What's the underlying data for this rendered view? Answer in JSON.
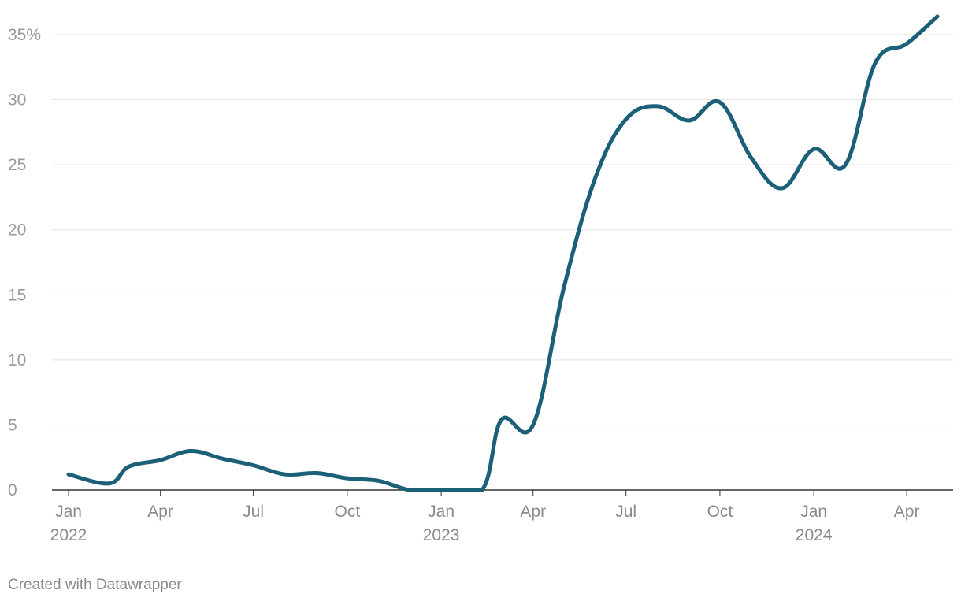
{
  "footer": {
    "credit": "Created with Datawrapper"
  },
  "colors": {
    "line": "#1b5f78",
    "grid": "#e3e3e3",
    "axis": "#333333",
    "tick_text": "#9a9a9a"
  },
  "chart_data": {
    "type": "line",
    "title": "",
    "xlabel": "",
    "ylabel": "",
    "ylim": [
      0,
      35
    ],
    "xlim": [
      "2022-01",
      "2024-05"
    ],
    "y_ticks": [
      0,
      5,
      10,
      15,
      20,
      25,
      30,
      35
    ],
    "y_tick_labels": [
      "0",
      "5",
      "10",
      "15",
      "20",
      "25",
      "30",
      "35%"
    ],
    "x_ticks": [
      {
        "month": "2022-01",
        "label": "Jan",
        "sublabel": "2022"
      },
      {
        "month": "2022-04",
        "label": "Apr",
        "sublabel": ""
      },
      {
        "month": "2022-07",
        "label": "Jul",
        "sublabel": ""
      },
      {
        "month": "2022-10",
        "label": "Oct",
        "sublabel": ""
      },
      {
        "month": "2023-01",
        "label": "Jan",
        "sublabel": "2023"
      },
      {
        "month": "2023-04",
        "label": "Apr",
        "sublabel": ""
      },
      {
        "month": "2023-07",
        "label": "Jul",
        "sublabel": ""
      },
      {
        "month": "2023-10",
        "label": "Oct",
        "sublabel": ""
      },
      {
        "month": "2024-01",
        "label": "Jan",
        "sublabel": "2024"
      },
      {
        "month": "2024-04",
        "label": "Apr",
        "sublabel": ""
      }
    ],
    "grid": true,
    "series": [
      {
        "color": "#1b5f78",
        "points": [
          {
            "x": "2022-01-01",
            "y": 1.2
          },
          {
            "x": "2022-02-10",
            "y": 0.5
          },
          {
            "x": "2022-03-01",
            "y": 1.8
          },
          {
            "x": "2022-04-01",
            "y": 2.3
          },
          {
            "x": "2022-05-01",
            "y": 3.0
          },
          {
            "x": "2022-06-01",
            "y": 2.4
          },
          {
            "x": "2022-07-01",
            "y": 1.9
          },
          {
            "x": "2022-08-01",
            "y": 1.2
          },
          {
            "x": "2022-09-01",
            "y": 1.3
          },
          {
            "x": "2022-10-01",
            "y": 0.9
          },
          {
            "x": "2022-11-01",
            "y": 0.7
          },
          {
            "x": "2022-12-01",
            "y": 0.0
          },
          {
            "x": "2023-01-01",
            "y": 0.0
          },
          {
            "x": "2023-02-10",
            "y": 0.0
          },
          {
            "x": "2023-03-01",
            "y": 5.4
          },
          {
            "x": "2023-04-01",
            "y": 5.0
          },
          {
            "x": "2023-05-01",
            "y": 15.5
          },
          {
            "x": "2023-06-01",
            "y": 24.0
          },
          {
            "x": "2023-07-01",
            "y": 28.5
          },
          {
            "x": "2023-08-01",
            "y": 29.5
          },
          {
            "x": "2023-09-01",
            "y": 28.4
          },
          {
            "x": "2023-10-01",
            "y": 29.8
          },
          {
            "x": "2023-11-01",
            "y": 25.5
          },
          {
            "x": "2023-12-01",
            "y": 23.2
          },
          {
            "x": "2024-01-01",
            "y": 26.2
          },
          {
            "x": "2024-02-01",
            "y": 25.0
          },
          {
            "x": "2024-03-01",
            "y": 32.8
          },
          {
            "x": "2024-04-01",
            "y": 34.3
          },
          {
            "x": "2024-05-01",
            "y": 36.4
          }
        ]
      }
    ]
  }
}
